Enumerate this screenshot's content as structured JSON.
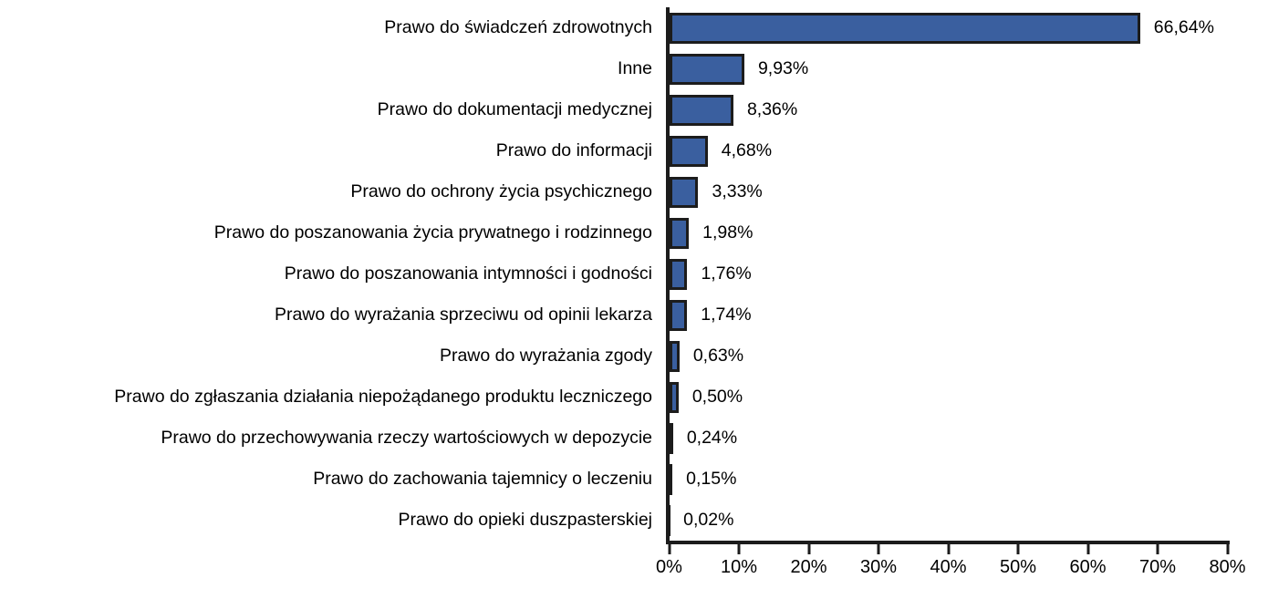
{
  "chart_data": {
    "type": "bar",
    "orientation": "horizontal",
    "title": "",
    "xlabel": "",
    "ylabel": "",
    "xlim": [
      0,
      80
    ],
    "grid": false,
    "legend": null,
    "x_ticks": [
      "0%",
      "10%",
      "20%",
      "30%",
      "40%",
      "50%",
      "60%",
      "70%",
      "80%"
    ],
    "categories": [
      "Prawo do świadczeń zdrowotnych",
      "Inne",
      "Prawo do dokumentacji medycznej",
      "Prawo do informacji",
      "Prawo do ochrony życia psychicznego",
      "Prawo do poszanowania życia prywatnego i rodzinnego",
      "Prawo do poszanowania intymności i godności",
      "Prawo do wyrażania sprzeciwu od opinii lekarza",
      "Prawo do wyrażania zgody",
      "Prawo do zgłaszania działania niepożądanego produktu leczniczego",
      "Prawo do przechowywania rzeczy wartościowych w depozycie",
      "Prawo do zachowania tajemnicy o leczeniu",
      "Prawo do opieki duszpasterskiej"
    ],
    "values": [
      66.64,
      9.93,
      8.36,
      4.68,
      3.33,
      1.98,
      1.76,
      1.74,
      0.63,
      0.5,
      0.24,
      0.15,
      0.02
    ],
    "value_labels": [
      "66,64%",
      "9,93%",
      "8,36%",
      "4,68%",
      "3,33%",
      "1,98%",
      "1,76%",
      "1,74%",
      "0,63%",
      "0,50%",
      "0,24%",
      "0,15%",
      "0,02%"
    ],
    "colors": {
      "bar_fill": "#3a5f9f",
      "bar_border": "#1c1c1c",
      "axis": "#1c1c1c",
      "text": "#000000",
      "background": "#ffffff"
    }
  }
}
